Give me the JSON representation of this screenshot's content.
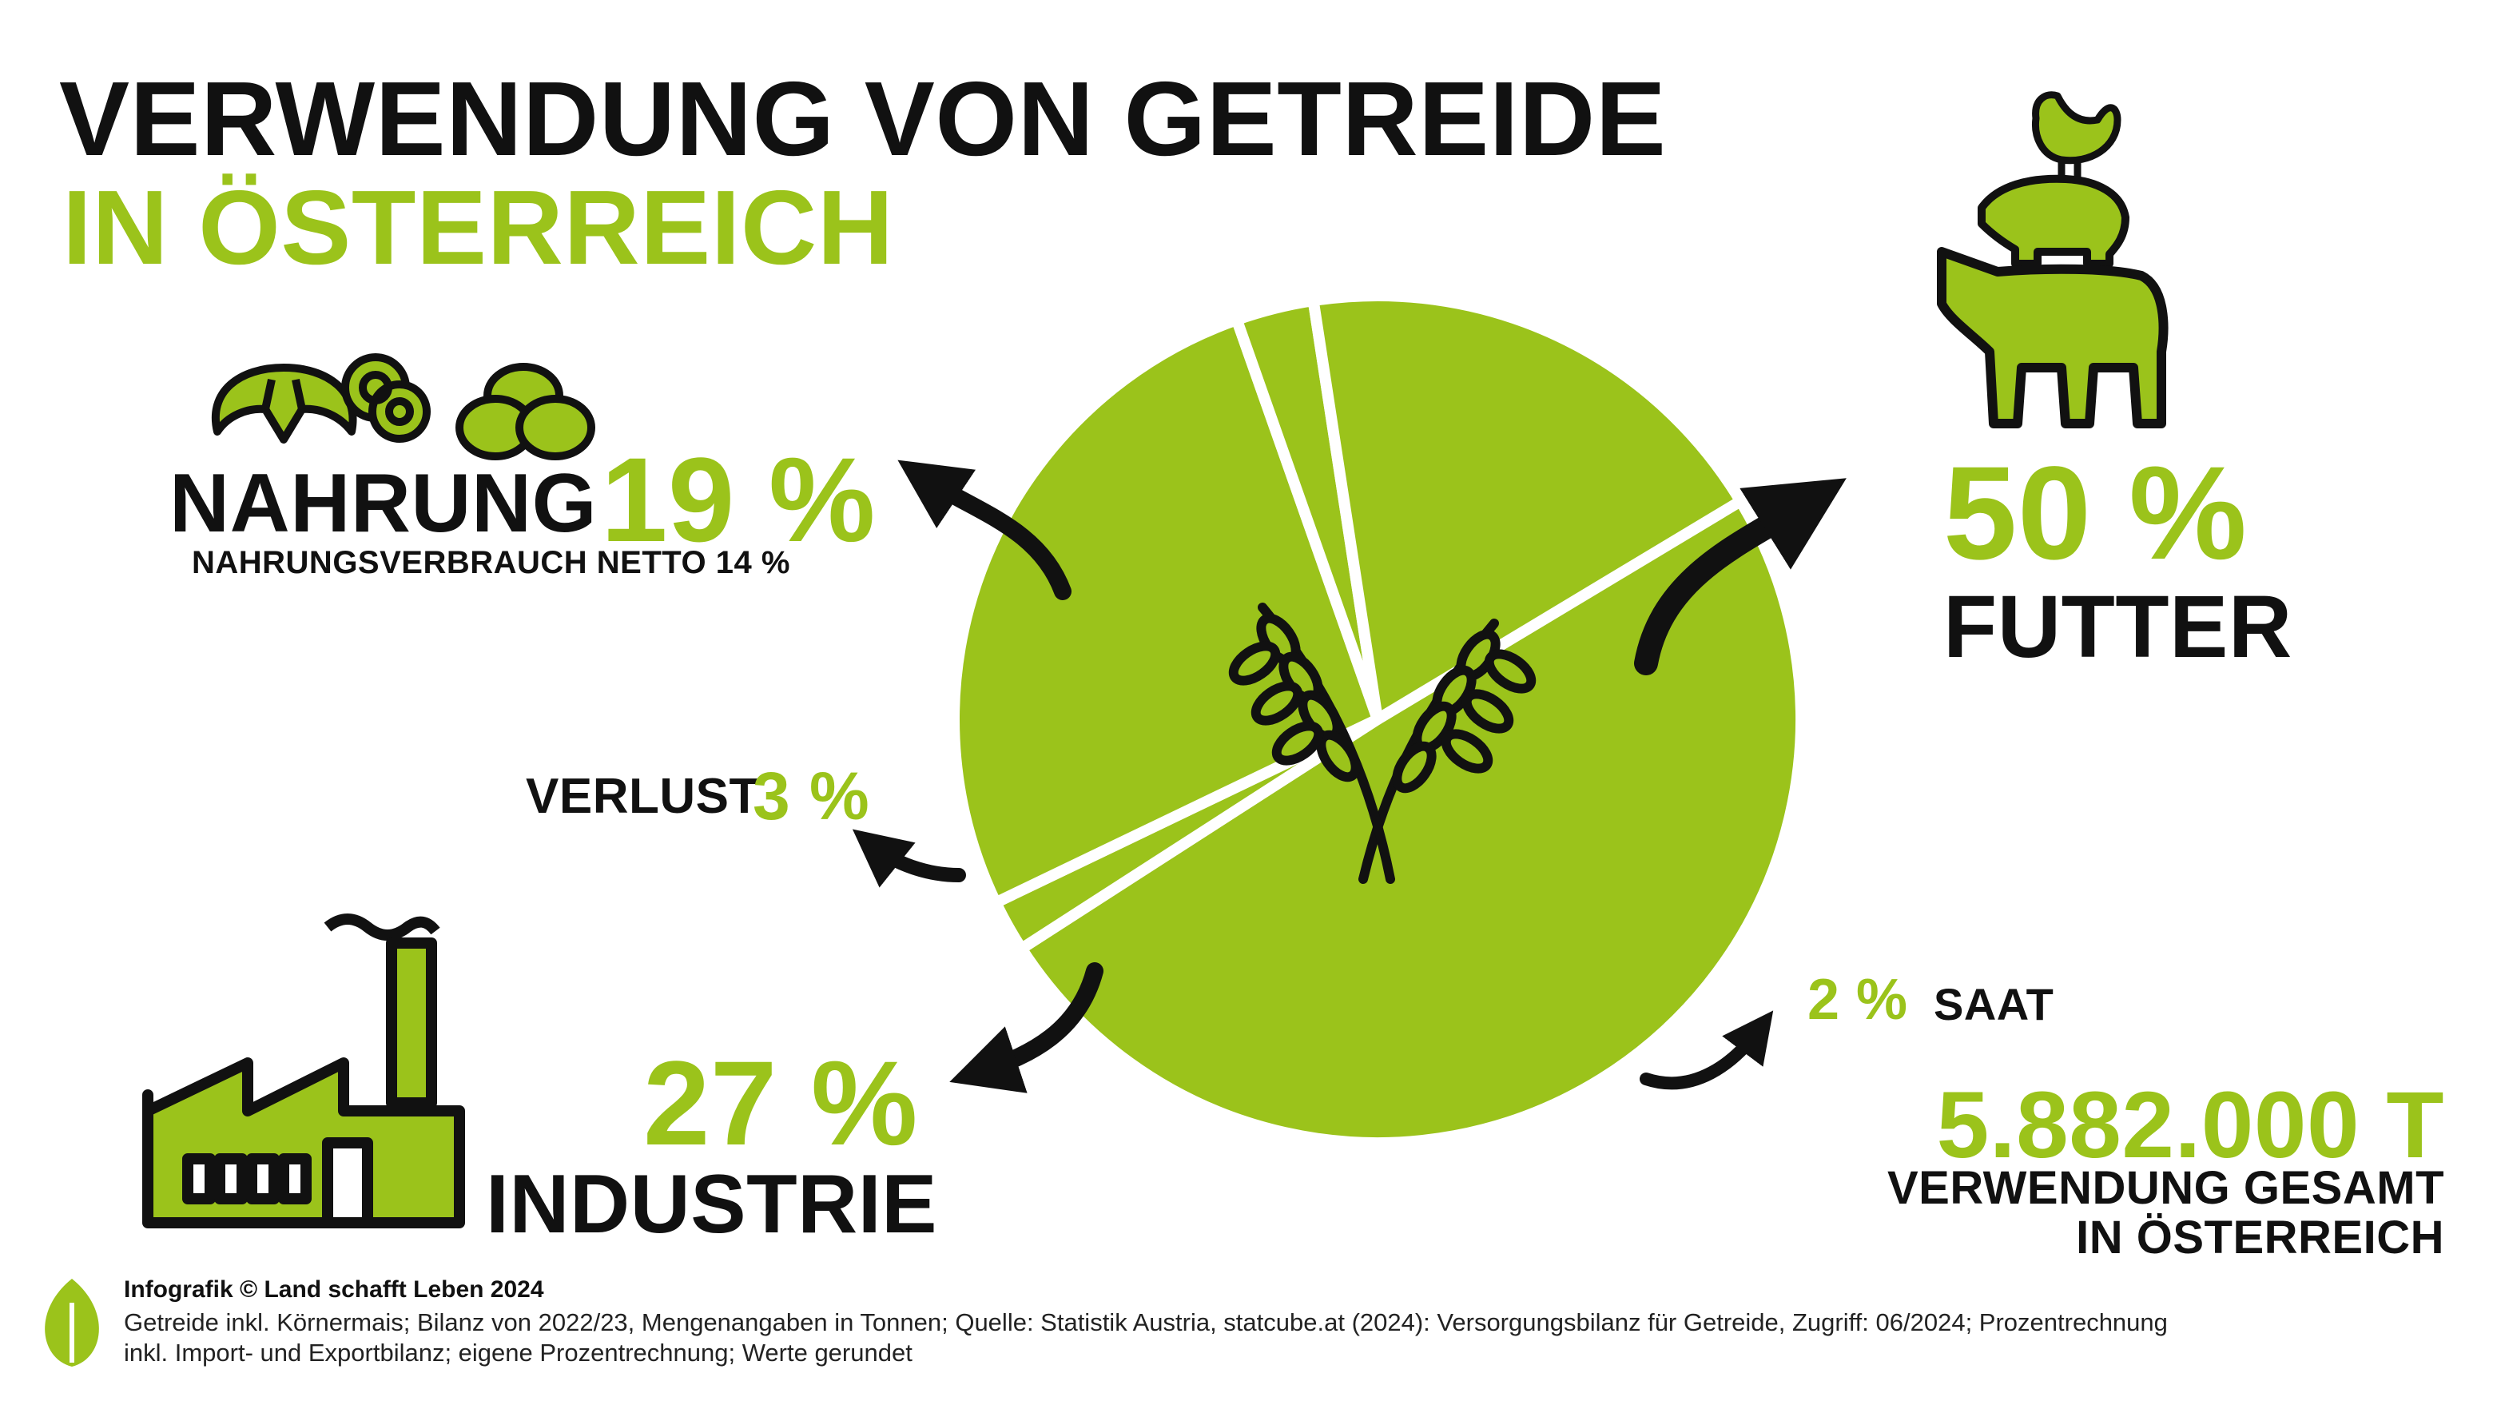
{
  "title": {
    "line1": "VERWENDUNG VON GETREIDE",
    "line2": "IN ÖSTERREICH"
  },
  "colors": {
    "green": "#9bc31b",
    "black": "#111111",
    "white": "#ffffff"
  },
  "chart_data": {
    "type": "pie",
    "unit": "%",
    "slices": [
      {
        "name": "FUTTER",
        "value": 50
      },
      {
        "name": "SAAT",
        "value": 2
      },
      {
        "name": "INDUSTRIE",
        "value": 27
      },
      {
        "name": "VERLUST",
        "value": 3
      },
      {
        "name": "NAHRUNG",
        "value": 19
      }
    ],
    "total": "5.882.000 T"
  },
  "labels": {
    "nahrung": {
      "name": "NAHRUNG",
      "pct": "19 %",
      "sub": "NAHRUNGSVERBRAUCH NETTO 14 %"
    },
    "verlust": {
      "name": "VERLUST",
      "pct": "3 %"
    },
    "industrie": {
      "name": "INDUSTRIE",
      "pct": "27 %"
    },
    "futter": {
      "name": "FUTTER",
      "pct": "50 %"
    },
    "saat": {
      "name": "SAAT",
      "pct": "2 %"
    },
    "total": {
      "value": "5.882.000 T",
      "sub1": "VERWENDUNG GESAMT",
      "sub2": "IN ÖSTERREICH"
    }
  },
  "icons": [
    "croissant-icon",
    "pretzel-icon",
    "bread-rolls-icon",
    "chicken-icon",
    "pig-icon",
    "cow-icon",
    "factory-icon",
    "wheat-icon",
    "land-schafft-leben-logo-icon"
  ],
  "footer": {
    "credit": "Infografik © Land schafft Leben 2024",
    "note_line1": "Getreide inkl. Körnermais; Bilanz von 2022/23, Mengenangaben in Tonnen; Quelle: Statistik Austria, statcube.at (2024): Versorgungsbilanz für Getreide, Zugriff: 06/2024; Prozentrechnung",
    "note_line2": "inkl. Import- und Exportbilanz; eigene Prozentrechnung; Werte gerundet"
  }
}
